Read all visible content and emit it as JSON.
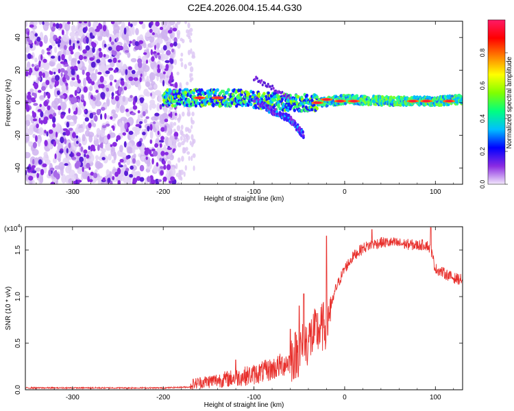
{
  "title": "C2E4.2026.004.15.44.G30",
  "chart_data": [
    {
      "type": "heatmap",
      "name": "spectrogram",
      "xlabel": "Height of straight line (km)",
      "ylabel": "Frequency (Hz)",
      "xlim": [
        -352,
        130
      ],
      "ylim": [
        -50,
        50
      ],
      "xticks": [
        -300,
        -200,
        -100,
        0,
        100
      ],
      "yticks": [
        -40,
        -20,
        0,
        20,
        40
      ],
      "colorbar": {
        "label": "Normalized spectral amplitude",
        "range": [
          0,
          1
        ],
        "ticks": [
          "0.0",
          "0.2",
          "0.4",
          "0.6",
          "0.8"
        ],
        "colors": [
          "#f2e8fb",
          "#8a2be2",
          "#0000ff",
          "#00bfff",
          "#00ff80",
          "#80ff00",
          "#ffff00",
          "#ff8000",
          "#ff0000",
          "#ff1a66"
        ]
      },
      "noise_region_km": [
        -352,
        -165
      ],
      "signal_band": [
        {
          "h": -200,
          "f": 3
        },
        {
          "h": -150,
          "f": 3
        },
        {
          "h": -120,
          "f": 3
        },
        {
          "h": -100,
          "f": 2
        },
        {
          "h": -60,
          "f": 0
        },
        {
          "h": -30,
          "f": 0
        },
        {
          "h": 0,
          "f": 2
        },
        {
          "h": 50,
          "f": 1
        },
        {
          "h": 100,
          "f": 1
        },
        {
          "h": 130,
          "f": 2
        }
      ],
      "branch": [
        {
          "h": -100,
          "f": 2
        },
        {
          "h": -80,
          "f": -5
        },
        {
          "h": -60,
          "f": -10
        },
        {
          "h": -45,
          "f": -20
        }
      ]
    },
    {
      "type": "line",
      "name": "snr",
      "xlabel": "Height of straight line (km)",
      "ylabel": "SNR (10 * v/v)",
      "scale_label": "(x10",
      "scale_exp": "4",
      "scale_close": ")",
      "xlim": [
        -352,
        130
      ],
      "ylim": [
        0,
        1.75
      ],
      "xticks": [
        -300,
        -200,
        -100,
        0,
        100
      ],
      "yticks": [
        "0.0",
        "0.5",
        "1.0",
        "1.5"
      ],
      "color": "#e8302c",
      "trend": {
        "x": [
          -352,
          -200,
          -170,
          -160,
          -120,
          -100,
          -80,
          -60,
          -50,
          -40,
          -30,
          -25,
          -20,
          -18,
          -15,
          -10,
          0,
          10,
          20,
          30,
          40,
          50,
          60,
          70,
          80,
          90,
          95,
          100,
          110,
          120,
          130
        ],
        "y": [
          0.02,
          0.02,
          0.03,
          0.05,
          0.09,
          0.12,
          0.17,
          0.25,
          0.33,
          0.45,
          0.55,
          0.58,
          0.63,
          0.7,
          0.88,
          1.08,
          1.3,
          1.44,
          1.52,
          1.56,
          1.58,
          1.58,
          1.57,
          1.56,
          1.55,
          1.56,
          1.5,
          1.3,
          1.25,
          1.2,
          1.18
        ]
      },
      "spikes": [
        {
          "x": -120,
          "y": 0.32
        },
        {
          "x": -60,
          "y": 0.65
        },
        {
          "x": -50,
          "y": 0.9
        },
        {
          "x": -45,
          "y": 1.03
        },
        {
          "x": -20,
          "y": 1.65
        },
        {
          "x": 30,
          "y": 1.72
        },
        {
          "x": 95,
          "y": 1.74
        }
      ]
    }
  ]
}
